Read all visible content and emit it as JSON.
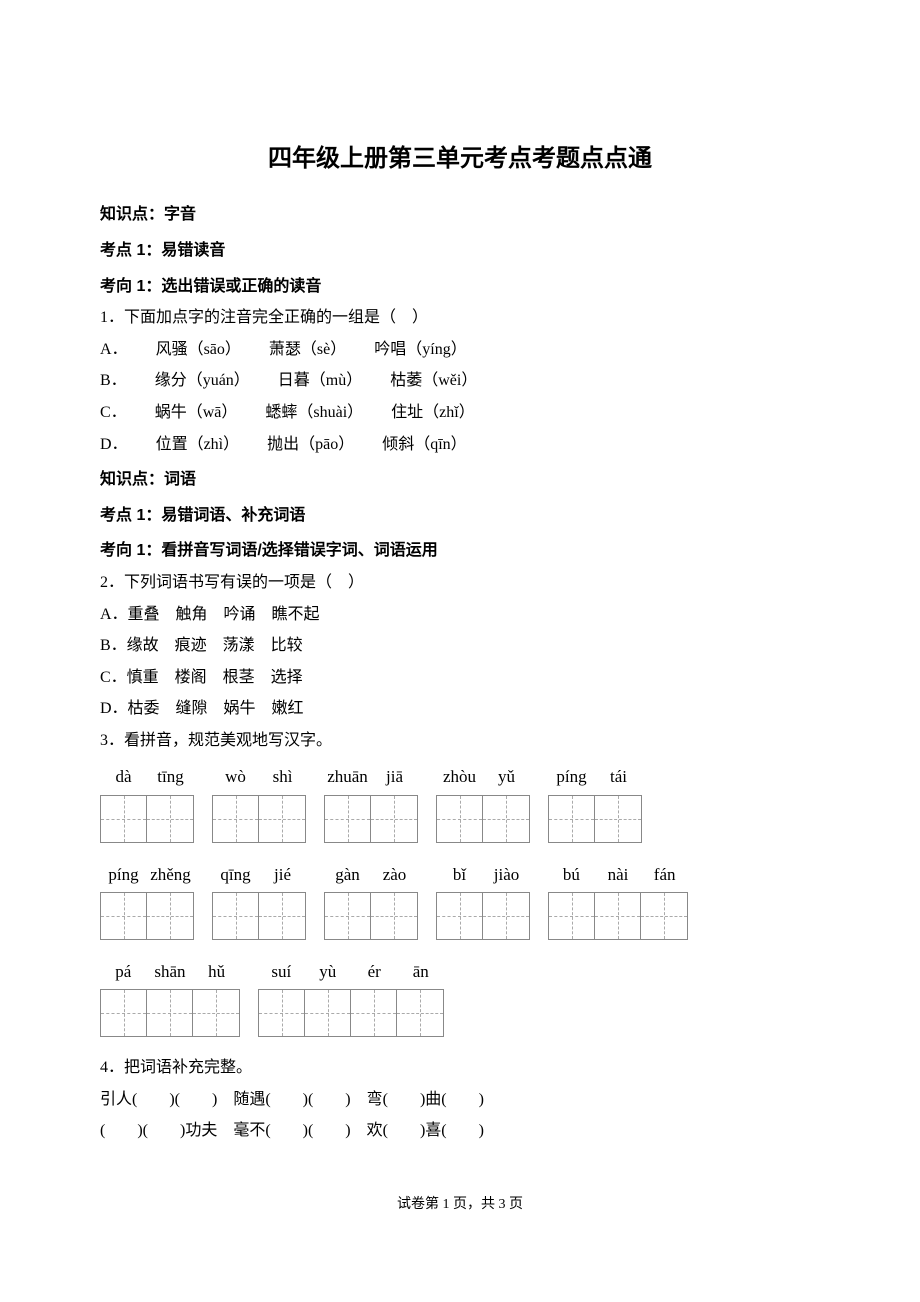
{
  "title": "四年级上册第三单元考点考题点点通",
  "sec1": {
    "heading": "知识点：字音",
    "point1": "考点 1：易错读音",
    "direction1": "考向 1：选出错误或正确的读音",
    "q1": "1．下面加点字的注音完全正确的一组是（　）",
    "q1a_label": "A．",
    "q1a_1": "风骚（sāo）",
    "q1a_2": "萧瑟（sè）",
    "q1a_3": "吟唱（yíng）",
    "q1b_label": "B．",
    "q1b_1": "缘分（yuán）",
    "q1b_2": "日暮（mù）",
    "q1b_3": "枯萎（wěi）",
    "q1c_label": "C．",
    "q1c_1": "蜗牛（wā）",
    "q1c_2": "蟋蟀（shuài）",
    "q1c_3": "住址（zhǐ）",
    "q1d_label": "D．",
    "q1d_1": "位置（zhì）",
    "q1d_2": "抛出（pāo）",
    "q1d_3": "倾斜（qīn）"
  },
  "sec2": {
    "heading": "知识点：词语",
    "point1": "考点 1：易错词语、补充词语",
    "direction1": "考向 1：看拼音写词语/选择错误字词、词语运用",
    "q2": "2．下列词语书写有误的一项是（　）",
    "q2a": "A．重叠　触角　吟诵　瞧不起",
    "q2b": "B．缘故　痕迹　荡漾　比较",
    "q2c": "C．慎重　楼阁　根茎　选择",
    "q2d": "D．枯委　缝隙　娲牛　嫩红",
    "q3": "3．看拼音，规范美观地写汉字。",
    "q4": "4．把词语补充完整。",
    "q4_line1": "引人(　　)(　　)　随遇(　　)(　　)　弯(　　)曲(　　)",
    "q4_line2": "(　　)(　　)功夫　毫不(　　)(　　)　欢(　　)喜(　　)"
  },
  "pinyin": {
    "row1": [
      {
        "labels": [
          "dà",
          "tīng"
        ],
        "cells": 2
      },
      {
        "labels": [
          "wò",
          "shì"
        ],
        "cells": 2
      },
      {
        "labels": [
          "zhuān",
          "jiā"
        ],
        "cells": 2
      },
      {
        "labels": [
          "zhòu",
          "yǔ"
        ],
        "cells": 2
      },
      {
        "labels": [
          "píng",
          "tái"
        ],
        "cells": 2
      }
    ],
    "row2": [
      {
        "labels": [
          "píng",
          "zhěng"
        ],
        "cells": 2
      },
      {
        "labels": [
          "qīng",
          "jié"
        ],
        "cells": 2
      },
      {
        "labels": [
          "gàn",
          "zào"
        ],
        "cells": 2
      },
      {
        "labels": [
          "bǐ",
          "jiào"
        ],
        "cells": 2
      },
      {
        "labels": [
          "bú",
          "nài",
          "fán"
        ],
        "cells": 3
      }
    ],
    "row3": [
      {
        "labels": [
          "pá",
          "shān",
          "hǔ"
        ],
        "cells": 3
      },
      {
        "labels": [
          "suí",
          "yù",
          "ér",
          "ān"
        ],
        "cells": 4
      }
    ]
  },
  "footer": "试卷第 1 页，共 3 页"
}
